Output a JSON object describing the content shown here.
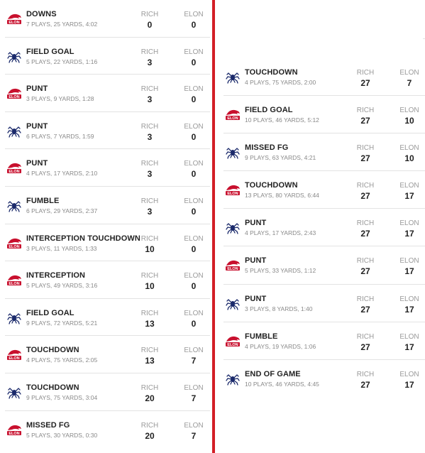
{
  "teams": {
    "home_abbr": "RICH",
    "away_abbr": "ELON"
  },
  "colors": {
    "divider": "#d31f26",
    "elon_logo": "#c8102e",
    "rich_logo": "#1b2a6b"
  },
  "drives_left": [
    {
      "logo": "elon-logo",
      "result": "DOWNS",
      "summary": "7 PLAYS, 25 YARDS, 4:02",
      "rich": "0",
      "elon": "0"
    },
    {
      "logo": "spider-logo",
      "result": "FIELD GOAL",
      "summary": "5 PLAYS, 22 YARDS, 1:16",
      "rich": "3",
      "elon": "0"
    },
    {
      "logo": "elon-logo",
      "result": "PUNT",
      "summary": "3 PLAYS, 9 YARDS, 1:28",
      "rich": "3",
      "elon": "0"
    },
    {
      "logo": "spider-logo",
      "result": "PUNT",
      "summary": "6 PLAYS, 7 YARDS, 1:59",
      "rich": "3",
      "elon": "0"
    },
    {
      "logo": "elon-logo",
      "result": "PUNT",
      "summary": "4 PLAYS, 17 YARDS, 2:10",
      "rich": "3",
      "elon": "0"
    },
    {
      "logo": "spider-logo",
      "result": "FUMBLE",
      "summary": "6 PLAYS, 29 YARDS, 2:37",
      "rich": "3",
      "elon": "0"
    },
    {
      "logo": "elon-logo",
      "result": "INTERCEPTION TOUCHDOWN",
      "summary": "3 PLAYS, 11 YARDS, 1:33",
      "rich": "10",
      "elon": "0"
    },
    {
      "logo": "elon-logo",
      "result": "INTERCEPTION",
      "summary": "5 PLAYS, 49 YARDS, 3:16",
      "rich": "10",
      "elon": "0"
    },
    {
      "logo": "spider-logo",
      "result": "FIELD GOAL",
      "summary": "9 PLAYS, 72 YARDS, 5:21",
      "rich": "13",
      "elon": "0"
    },
    {
      "logo": "elon-logo",
      "result": "TOUCHDOWN",
      "summary": "4 PLAYS, 75 YARDS, 2:05",
      "rich": "13",
      "elon": "7"
    },
    {
      "logo": "spider-logo",
      "result": "TOUCHDOWN",
      "summary": "9 PLAYS, 75 YARDS, 3:04",
      "rich": "20",
      "elon": "7"
    },
    {
      "logo": "elon-logo",
      "result": "MISSED FG",
      "summary": "5 PLAYS, 30 YARDS, 0:30",
      "rich": "20",
      "elon": "7"
    }
  ],
  "drives_right": [
    {
      "logo": "spider-logo",
      "result": "TOUCHDOWN",
      "summary": "4 PLAYS, 75 YARDS, 2:00",
      "rich": "27",
      "elon": "7"
    },
    {
      "logo": "elon-logo",
      "result": "FIELD GOAL",
      "summary": "10 PLAYS, 46 YARDS, 5:12",
      "rich": "27",
      "elon": "10"
    },
    {
      "logo": "spider-logo",
      "result": "MISSED FG",
      "summary": "9 PLAYS, 63 YARDS, 4:21",
      "rich": "27",
      "elon": "10"
    },
    {
      "logo": "elon-logo",
      "result": "TOUCHDOWN",
      "summary": "13 PLAYS, 80 YARDS, 6:44",
      "rich": "27",
      "elon": "17"
    },
    {
      "logo": "spider-logo",
      "result": "PUNT",
      "summary": "4 PLAYS, 17 YARDS, 2:43",
      "rich": "27",
      "elon": "17"
    },
    {
      "logo": "elon-logo",
      "result": "PUNT",
      "summary": "5 PLAYS, 33 YARDS, 1:12",
      "rich": "27",
      "elon": "17"
    },
    {
      "logo": "spider-logo",
      "result": "PUNT",
      "summary": "3 PLAYS, 8 YARDS, 1:40",
      "rich": "27",
      "elon": "17"
    },
    {
      "logo": "elon-logo",
      "result": "FUMBLE",
      "summary": "4 PLAYS, 19 YARDS, 1:06",
      "rich": "27",
      "elon": "17"
    },
    {
      "logo": "spider-logo",
      "result": "END OF GAME",
      "summary": "10 PLAYS, 46 YARDS, 4:45",
      "rich": "27",
      "elon": "17"
    }
  ]
}
